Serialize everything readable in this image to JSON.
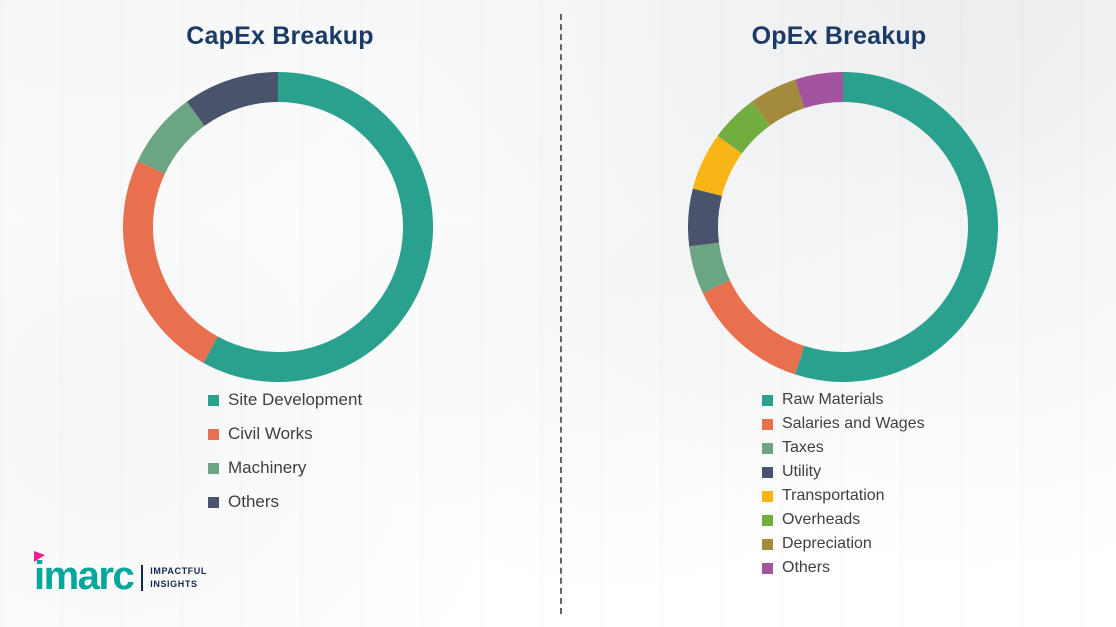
{
  "theme": {
    "title_color": "#1B3A66",
    "text_color": "#3F3F3F",
    "divider_color": "#4A4A4A"
  },
  "chart_data": [
    {
      "id": "capex",
      "type": "pie",
      "donut": true,
      "title": "CapEx Breakup",
      "labels": [
        "Site Development",
        "Civil Works",
        "Machinery",
        "Others"
      ],
      "values": [
        58,
        24,
        8,
        10
      ],
      "colors": [
        "#2AA08F",
        "#E8704F",
        "#6BA583",
        "#49536B"
      ],
      "legend_position": "bottom"
    },
    {
      "id": "opex",
      "type": "pie",
      "donut": true,
      "title": "OpEx Breakup",
      "labels": [
        "Raw Materials",
        "Salaries and Wages",
        "Taxes",
        "Utility",
        "Transportation",
        "Overheads",
        "Depreciation",
        "Others"
      ],
      "values": [
        55,
        13,
        5,
        6,
        6,
        5,
        5,
        5
      ],
      "colors": [
        "#2AA08F",
        "#E8704F",
        "#6BA583",
        "#49536B",
        "#F9B418",
        "#72AE3F",
        "#A38A3C",
        "#A4549E"
      ],
      "legend_position": "bottom"
    }
  ],
  "logo": {
    "brand": "imarc",
    "tagline_line1": "IMPACTFUL",
    "tagline_line2": "INSIGHTS",
    "brand_color": "#00A79D",
    "accent_color": "#EA218E"
  }
}
